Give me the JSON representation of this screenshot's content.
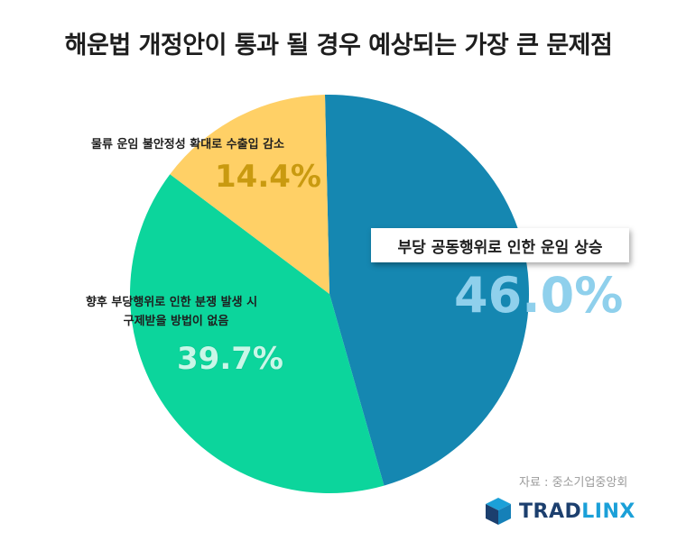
{
  "title": "해운법 개정안이 통과 될 경우 예상되는 가장 큰 문제점",
  "chart_data": {
    "type": "pie",
    "title": "해운법 개정안이 통과 될 경우 예상되는 가장 큰 문제점",
    "slices": [
      {
        "label": "부당 공동행위로 인한 운임 상승",
        "value": 46.0,
        "display": "46.0%",
        "color": "#1587b1",
        "pct_color": "#8fd0ec"
      },
      {
        "label": "향후 부당행위로 인한 분쟁 발생 시 구제받을 방법이 없음",
        "label_lines": [
          "향후 부당행위로 인한 분쟁 발생 시",
          "구제받을 방법이 없음"
        ],
        "value": 39.7,
        "display": "39.7%",
        "color": "#0cd59c",
        "pct_color": "#c9f7e8"
      },
      {
        "label": "물류 운임 불안정성 확대로 수출입 감소",
        "value": 14.4,
        "display": "14.4%",
        "color": "#ffd066",
        "pct_color": "#c99a10"
      }
    ]
  },
  "source": "자료 : 중소기업중앙회",
  "logo": {
    "part1": "TRAD",
    "part2": "LINX"
  }
}
